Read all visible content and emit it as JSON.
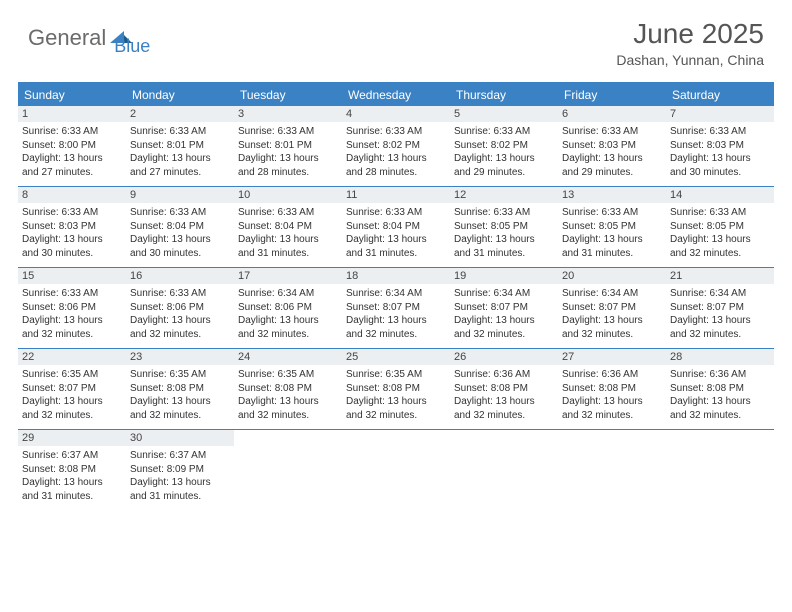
{
  "logo": {
    "general": "General",
    "blue": "Blue"
  },
  "title": "June 2025",
  "subtitle": "Dashan, Yunnan, China",
  "colors": {
    "accent": "#3b82c4",
    "header_text": "#ffffff",
    "daynum_bg": "#eceff1",
    "text": "#333333",
    "title_color": "#555555"
  },
  "typography": {
    "title_fontsize": 28,
    "subtitle_fontsize": 14,
    "dayheader_fontsize": 12,
    "daynum_fontsize": 11,
    "body_fontsize": 10
  },
  "dayHeaders": [
    "Sunday",
    "Monday",
    "Tuesday",
    "Wednesday",
    "Thursday",
    "Friday",
    "Saturday"
  ],
  "weeks": [
    [
      {
        "n": "1",
        "sunrise": "Sunrise: 6:33 AM",
        "sunset": "Sunset: 8:00 PM",
        "d1": "Daylight: 13 hours",
        "d2": "and 27 minutes."
      },
      {
        "n": "2",
        "sunrise": "Sunrise: 6:33 AM",
        "sunset": "Sunset: 8:01 PM",
        "d1": "Daylight: 13 hours",
        "d2": "and 27 minutes."
      },
      {
        "n": "3",
        "sunrise": "Sunrise: 6:33 AM",
        "sunset": "Sunset: 8:01 PM",
        "d1": "Daylight: 13 hours",
        "d2": "and 28 minutes."
      },
      {
        "n": "4",
        "sunrise": "Sunrise: 6:33 AM",
        "sunset": "Sunset: 8:02 PM",
        "d1": "Daylight: 13 hours",
        "d2": "and 28 minutes."
      },
      {
        "n": "5",
        "sunrise": "Sunrise: 6:33 AM",
        "sunset": "Sunset: 8:02 PM",
        "d1": "Daylight: 13 hours",
        "d2": "and 29 minutes."
      },
      {
        "n": "6",
        "sunrise": "Sunrise: 6:33 AM",
        "sunset": "Sunset: 8:03 PM",
        "d1": "Daylight: 13 hours",
        "d2": "and 29 minutes."
      },
      {
        "n": "7",
        "sunrise": "Sunrise: 6:33 AM",
        "sunset": "Sunset: 8:03 PM",
        "d1": "Daylight: 13 hours",
        "d2": "and 30 minutes."
      }
    ],
    [
      {
        "n": "8",
        "sunrise": "Sunrise: 6:33 AM",
        "sunset": "Sunset: 8:03 PM",
        "d1": "Daylight: 13 hours",
        "d2": "and 30 minutes."
      },
      {
        "n": "9",
        "sunrise": "Sunrise: 6:33 AM",
        "sunset": "Sunset: 8:04 PM",
        "d1": "Daylight: 13 hours",
        "d2": "and 30 minutes."
      },
      {
        "n": "10",
        "sunrise": "Sunrise: 6:33 AM",
        "sunset": "Sunset: 8:04 PM",
        "d1": "Daylight: 13 hours",
        "d2": "and 31 minutes."
      },
      {
        "n": "11",
        "sunrise": "Sunrise: 6:33 AM",
        "sunset": "Sunset: 8:04 PM",
        "d1": "Daylight: 13 hours",
        "d2": "and 31 minutes."
      },
      {
        "n": "12",
        "sunrise": "Sunrise: 6:33 AM",
        "sunset": "Sunset: 8:05 PM",
        "d1": "Daylight: 13 hours",
        "d2": "and 31 minutes."
      },
      {
        "n": "13",
        "sunrise": "Sunrise: 6:33 AM",
        "sunset": "Sunset: 8:05 PM",
        "d1": "Daylight: 13 hours",
        "d2": "and 31 minutes."
      },
      {
        "n": "14",
        "sunrise": "Sunrise: 6:33 AM",
        "sunset": "Sunset: 8:05 PM",
        "d1": "Daylight: 13 hours",
        "d2": "and 32 minutes."
      }
    ],
    [
      {
        "n": "15",
        "sunrise": "Sunrise: 6:33 AM",
        "sunset": "Sunset: 8:06 PM",
        "d1": "Daylight: 13 hours",
        "d2": "and 32 minutes."
      },
      {
        "n": "16",
        "sunrise": "Sunrise: 6:33 AM",
        "sunset": "Sunset: 8:06 PM",
        "d1": "Daylight: 13 hours",
        "d2": "and 32 minutes."
      },
      {
        "n": "17",
        "sunrise": "Sunrise: 6:34 AM",
        "sunset": "Sunset: 8:06 PM",
        "d1": "Daylight: 13 hours",
        "d2": "and 32 minutes."
      },
      {
        "n": "18",
        "sunrise": "Sunrise: 6:34 AM",
        "sunset": "Sunset: 8:07 PM",
        "d1": "Daylight: 13 hours",
        "d2": "and 32 minutes."
      },
      {
        "n": "19",
        "sunrise": "Sunrise: 6:34 AM",
        "sunset": "Sunset: 8:07 PM",
        "d1": "Daylight: 13 hours",
        "d2": "and 32 minutes."
      },
      {
        "n": "20",
        "sunrise": "Sunrise: 6:34 AM",
        "sunset": "Sunset: 8:07 PM",
        "d1": "Daylight: 13 hours",
        "d2": "and 32 minutes."
      },
      {
        "n": "21",
        "sunrise": "Sunrise: 6:34 AM",
        "sunset": "Sunset: 8:07 PM",
        "d1": "Daylight: 13 hours",
        "d2": "and 32 minutes."
      }
    ],
    [
      {
        "n": "22",
        "sunrise": "Sunrise: 6:35 AM",
        "sunset": "Sunset: 8:07 PM",
        "d1": "Daylight: 13 hours",
        "d2": "and 32 minutes."
      },
      {
        "n": "23",
        "sunrise": "Sunrise: 6:35 AM",
        "sunset": "Sunset: 8:08 PM",
        "d1": "Daylight: 13 hours",
        "d2": "and 32 minutes."
      },
      {
        "n": "24",
        "sunrise": "Sunrise: 6:35 AM",
        "sunset": "Sunset: 8:08 PM",
        "d1": "Daylight: 13 hours",
        "d2": "and 32 minutes."
      },
      {
        "n": "25",
        "sunrise": "Sunrise: 6:35 AM",
        "sunset": "Sunset: 8:08 PM",
        "d1": "Daylight: 13 hours",
        "d2": "and 32 minutes."
      },
      {
        "n": "26",
        "sunrise": "Sunrise: 6:36 AM",
        "sunset": "Sunset: 8:08 PM",
        "d1": "Daylight: 13 hours",
        "d2": "and 32 minutes."
      },
      {
        "n": "27",
        "sunrise": "Sunrise: 6:36 AM",
        "sunset": "Sunset: 8:08 PM",
        "d1": "Daylight: 13 hours",
        "d2": "and 32 minutes."
      },
      {
        "n": "28",
        "sunrise": "Sunrise: 6:36 AM",
        "sunset": "Sunset: 8:08 PM",
        "d1": "Daylight: 13 hours",
        "d2": "and 32 minutes."
      }
    ],
    [
      {
        "n": "29",
        "sunrise": "Sunrise: 6:37 AM",
        "sunset": "Sunset: 8:08 PM",
        "d1": "Daylight: 13 hours",
        "d2": "and 31 minutes."
      },
      {
        "n": "30",
        "sunrise": "Sunrise: 6:37 AM",
        "sunset": "Sunset: 8:09 PM",
        "d1": "Daylight: 13 hours",
        "d2": "and 31 minutes."
      },
      null,
      null,
      null,
      null,
      null
    ]
  ]
}
